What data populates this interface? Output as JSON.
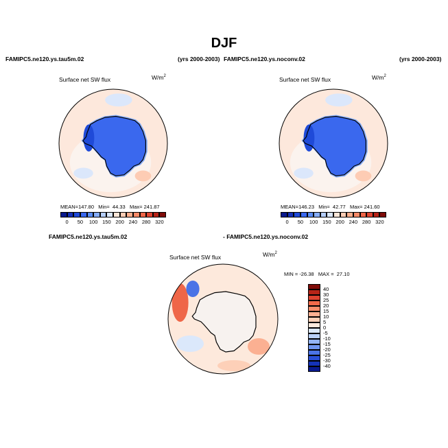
{
  "figure": {
    "title": "DJF",
    "left_case": "FAMIPC5.ne120.ys.tau5m.02",
    "left_years": "(yrs 2000-2003)",
    "right_case": "FAMIPC5.ne120.ys.noconv.02",
    "right_years": "(yrs 2000-2003)",
    "diff_left": "FAMIPC5.ne120.ys.tau5m.02",
    "diff_right": "- FAMIPC5.ne120.ys.noconv.02"
  },
  "chart_data": [
    {
      "type": "heatmap",
      "projection": "south-polar-stereographic",
      "title": "Surface net SW flux",
      "units": "W/m",
      "units_exponent": "2",
      "stats": {
        "mean_label": "MEAN=",
        "mean": "147.80",
        "min_label": "Min=",
        "min": "44.33",
        "max_label": "Max=",
        "max": "241.87"
      },
      "colorbar": {
        "orientation": "horizontal",
        "ticks": [
          "0",
          "50",
          "100",
          "150",
          "200",
          "240",
          "280",
          "320"
        ],
        "colors": [
          "#0a1a8c",
          "#1530b8",
          "#1f4ad8",
          "#3a68ee",
          "#5a8cf6",
          "#86adf8",
          "#b4cdfa",
          "#dbe7fb",
          "#fbe6d8",
          "#fdccb4",
          "#fbad8c",
          "#f78a68",
          "#ef6648",
          "#dd4230",
          "#b62418",
          "#7f0c08"
        ]
      }
    },
    {
      "type": "heatmap",
      "projection": "south-polar-stereographic",
      "title": "Surface net SW flux",
      "units": "W/m",
      "units_exponent": "2",
      "stats": {
        "mean_label": "MEAN=",
        "mean": "146.23",
        "min_label": "Min=",
        "min": "42.77",
        "max_label": "Max=",
        "max": "241.60"
      },
      "colorbar": {
        "orientation": "horizontal",
        "ticks": [
          "0",
          "50",
          "100",
          "150",
          "200",
          "240",
          "280",
          "320"
        ],
        "colors": [
          "#0a1a8c",
          "#1530b8",
          "#1f4ad8",
          "#3a68ee",
          "#5a8cf6",
          "#86adf8",
          "#b4cdfa",
          "#dbe7fb",
          "#fbe6d8",
          "#fdccb4",
          "#fbad8c",
          "#f78a68",
          "#ef6648",
          "#dd4230",
          "#b62418",
          "#7f0c08"
        ]
      }
    },
    {
      "type": "heatmap",
      "projection": "south-polar-stereographic",
      "title": "Surface net SW flux",
      "units": "W/m",
      "units_exponent": "2",
      "stats": {
        "min_label": "MIN =",
        "min": "-26.38",
        "max_label": "MAX =",
        "max": "27.10"
      },
      "colorbar": {
        "orientation": "vertical",
        "ticks": [
          "40",
          "30",
          "25",
          "20",
          "15",
          "10",
          "5",
          "0",
          "-5",
          "-10",
          "-15",
          "-20",
          "-25",
          "-30",
          "-40"
        ],
        "colors": [
          "#7f0c08",
          "#b62418",
          "#dd4230",
          "#f26a4a",
          "#f78e6c",
          "#fbb092",
          "#fdd0b8",
          "#fde9dc",
          "#dbe8fb",
          "#b8cff8",
          "#93b3f4",
          "#6f95ef",
          "#4b73e6",
          "#2a4fd6",
          "#1533b8",
          "#0a1a8c"
        ]
      }
    }
  ]
}
